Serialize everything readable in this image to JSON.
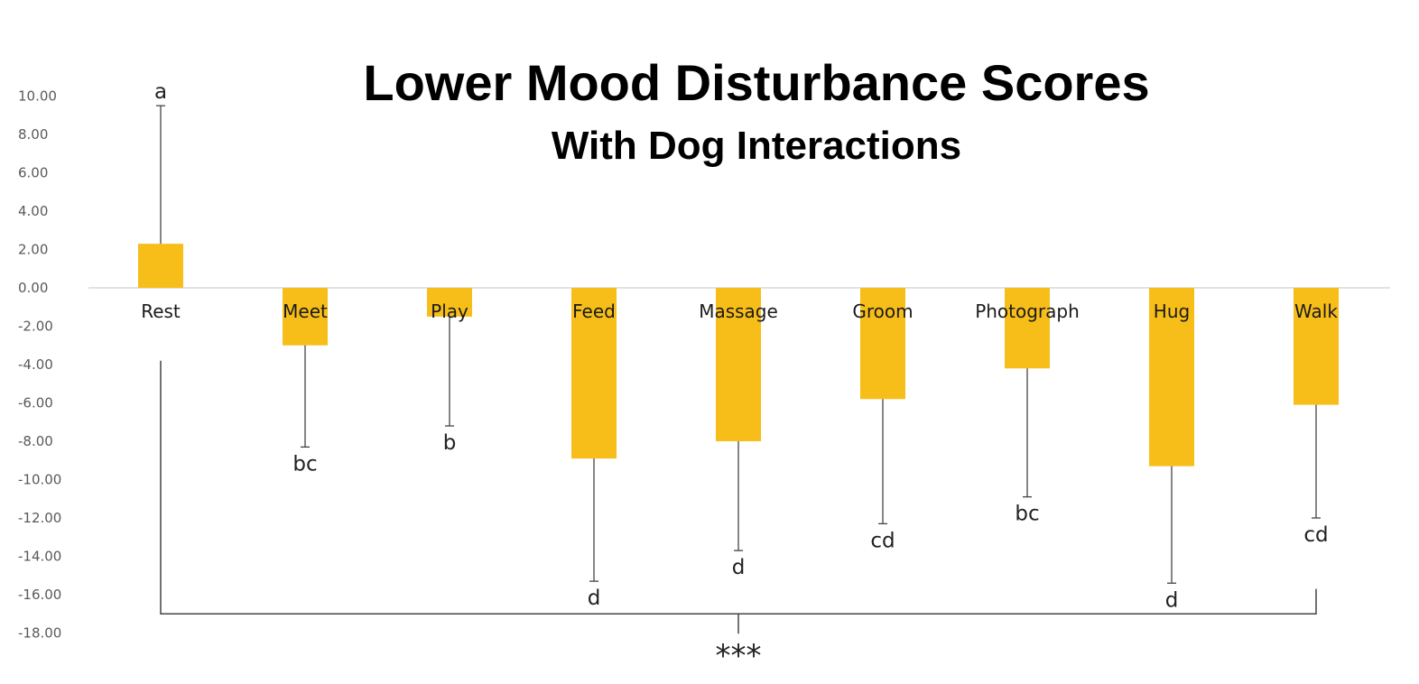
{
  "chart_data": {
    "type": "bar",
    "title": "Lower Mood Disturbance Scores",
    "subtitle": "With Dog Interactions",
    "xlabel": "",
    "ylabel": "",
    "ylim": [
      -18,
      10
    ],
    "yticks": [
      "10.00",
      "8.00",
      "6.00",
      "4.00",
      "2.00",
      "0.00",
      "-2.00",
      "-4.00",
      "-6.00",
      "-8.00",
      "-10.00",
      "-12.00",
      "-14.00",
      "-16.00",
      "-18.00"
    ],
    "categories": [
      "Rest",
      "Meet",
      "Play",
      "Feed",
      "Massage",
      "Groom",
      "Photograph",
      "Hug",
      "Walk"
    ],
    "values": [
      2.3,
      -3.0,
      -1.5,
      -8.9,
      -8.0,
      -5.8,
      -4.2,
      -9.3,
      -6.1
    ],
    "error_ends": [
      9.5,
      -8.3,
      -7.2,
      -15.3,
      -13.7,
      -12.3,
      -10.9,
      -15.4,
      -12.0
    ],
    "letters": [
      "a",
      "bc",
      "b",
      "d",
      "d",
      "cd",
      "bc",
      "d",
      "cd"
    ],
    "significance": "***",
    "bar_color": "#F7BE1A",
    "grid": false
  }
}
